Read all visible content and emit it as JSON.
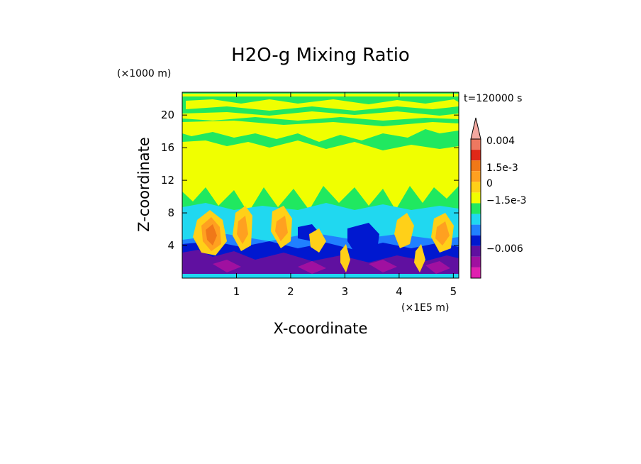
{
  "chart_data": {
    "type": "heatmap",
    "title": "H2O-g Mixing Ratio",
    "xlabel": "X-coordinate",
    "ylabel": "Z-coordinate",
    "x_unit": "(×1E5 m)",
    "y_unit": "(×1000 m)",
    "time_label": "t=120000 s",
    "xlim": [
      0,
      5.1
    ],
    "ylim": [
      0,
      22.8
    ],
    "x_ticks": [
      "1",
      "2",
      "3",
      "4",
      "5"
    ],
    "y_ticks": [
      "4",
      "8",
      "12",
      "16",
      "20"
    ],
    "colorbar": {
      "labels": [
        "0.004",
        "1.5e-3",
        "0",
        "−1.5e-3",
        "−0.006"
      ],
      "colors": [
        "#f4a8a0",
        "#ee7860",
        "#e02818",
        "#f07818",
        "#ffa020",
        "#ffd018",
        "#f0ff00",
        "#20e860",
        "#20d8f0",
        "#2080ff",
        "#0018d0",
        "#6010a0",
        "#a010a0",
        "#e020b0"
      ]
    }
  }
}
